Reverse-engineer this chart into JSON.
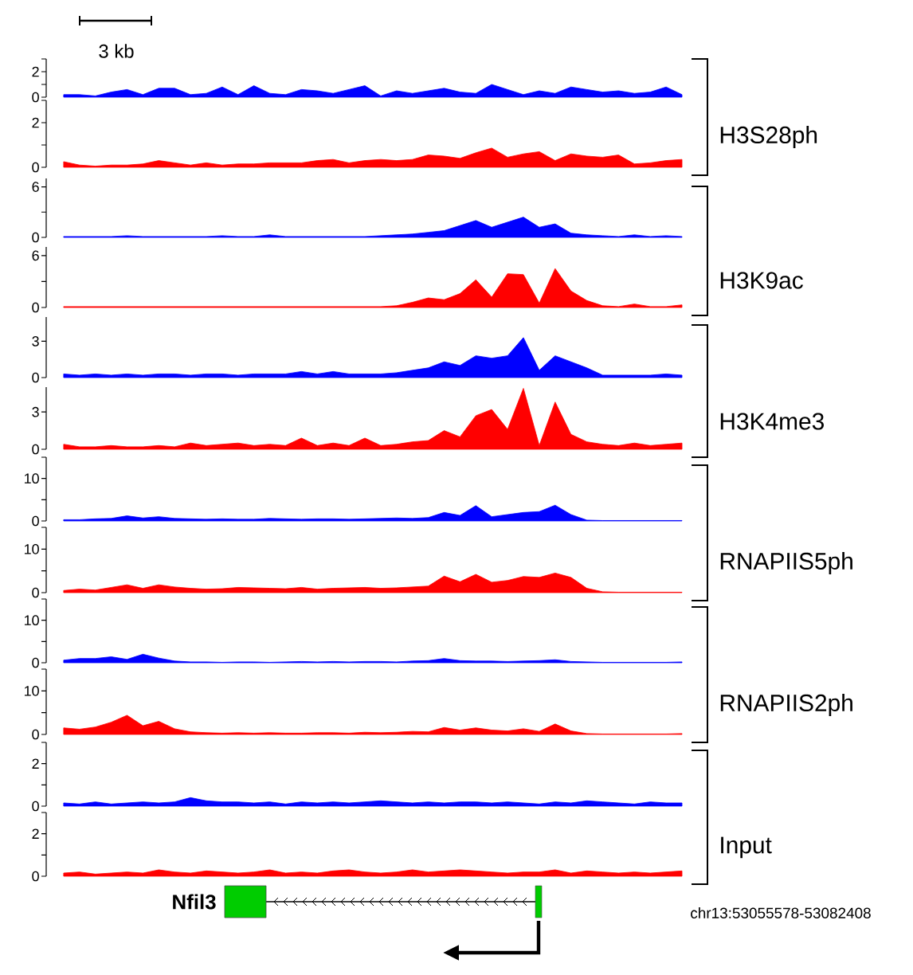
{
  "chart_data": [
    {
      "type": "area",
      "annotations": [
        "3 kb"
      ],
      "tick_labels": "y",
      "color": "#0000ff",
      "ylim": [
        0,
        3
      ],
      "yticks": [
        0,
        {
          "value": 1,
          "label": null
        },
        2,
        {
          "value": 3,
          "label": null
        }
      ],
      "categories": [
        null,
        null,
        null,
        null,
        null,
        null,
        null,
        null,
        null,
        null,
        null,
        null,
        null,
        null,
        null,
        null,
        null,
        null,
        null,
        null,
        null,
        null,
        null,
        null,
        null,
        null,
        null,
        null,
        null,
        null,
        null,
        null,
        null,
        null,
        null,
        null,
        null,
        null,
        null,
        null
      ],
      "values": [
        0.2,
        0.2,
        0.1,
        0.4,
        0.6,
        0.2,
        0.7,
        0.7,
        0.2,
        0.3,
        0.8,
        0.2,
        0.9,
        0.3,
        0.2,
        0.6,
        0.5,
        0.3,
        0.6,
        0.9,
        0.1,
        0.5,
        0.3,
        0.5,
        0.7,
        0.4,
        0.3,
        1.0,
        0.6,
        0.2,
        0.5,
        0.3,
        0.8,
        0.6,
        0.4,
        0.5,
        0.3,
        0.4,
        0.8,
        0.2
      ]
    },
    {
      "type": "area",
      "annotations": [
        "H3S28ph"
      ],
      "tick_labels": "y",
      "color": "#ff0000",
      "ylim": [
        0,
        3
      ],
      "yticks": [
        0,
        {
          "value": 1,
          "label": null
        },
        2,
        {
          "value": 3,
          "label": null
        }
      ],
      "categories": [
        null,
        null,
        null,
        null,
        null,
        null,
        null,
        null,
        null,
        null,
        null,
        null,
        null,
        null,
        null,
        null,
        null,
        null,
        null,
        null,
        null,
        null,
        null,
        null,
        null,
        null,
        null,
        null,
        null,
        null,
        null,
        null,
        null,
        null,
        null,
        null,
        null,
        null,
        null,
        null
      ],
      "values": [
        0.25,
        0.1,
        0.05,
        0.1,
        0.1,
        0.15,
        0.3,
        0.2,
        0.1,
        0.2,
        0.1,
        0.15,
        0.15,
        0.2,
        0.2,
        0.2,
        0.3,
        0.35,
        0.2,
        0.3,
        0.35,
        0.3,
        0.35,
        0.55,
        0.5,
        0.4,
        0.65,
        0.86,
        0.45,
        0.6,
        0.7,
        0.3,
        0.6,
        0.5,
        0.45,
        0.55,
        0.15,
        0.2,
        0.3,
        0.35
      ]
    },
    {
      "type": "area",
      "tick_labels": "y",
      "color": "#0000ff",
      "ylim": [
        0,
        7
      ],
      "yticks": [
        0,
        {
          "value": 3,
          "label": null
        },
        6
      ],
      "categories": [
        null,
        null,
        null,
        null,
        null,
        null,
        null,
        null,
        null,
        null,
        null,
        null,
        null,
        null,
        null,
        null,
        null,
        null,
        null,
        null,
        null,
        null,
        null,
        null,
        null,
        null,
        null,
        null,
        null,
        null,
        null,
        null,
        null,
        null,
        null,
        null,
        null,
        null,
        null,
        null
      ],
      "values": [
        0.1,
        0.1,
        0.1,
        0.1,
        0.2,
        0.1,
        0.1,
        0.1,
        0.1,
        0.1,
        0.2,
        0.1,
        0.1,
        0.3,
        0.1,
        0.1,
        0.1,
        0.1,
        0.1,
        0.1,
        0.2,
        0.3,
        0.4,
        0.6,
        0.8,
        1.4,
        2.0,
        1.2,
        1.8,
        2.4,
        1.2,
        1.6,
        0.5,
        0.3,
        0.2,
        0.1,
        0.3,
        0.1,
        0.2,
        0.1
      ]
    },
    {
      "type": "area",
      "annotations": [
        "H3K9ac"
      ],
      "tick_labels": "y",
      "color": "#ff0000",
      "ylim": [
        0,
        7
      ],
      "yticks": [
        0,
        {
          "value": 3,
          "label": null
        },
        6
      ],
      "categories": [
        null,
        null,
        null,
        null,
        null,
        null,
        null,
        null,
        null,
        null,
        null,
        null,
        null,
        null,
        null,
        null,
        null,
        null,
        null,
        null,
        null,
        null,
        null,
        null,
        null,
        null,
        null,
        null,
        null,
        null,
        null,
        null,
        null,
        null,
        null,
        null,
        null,
        null,
        null,
        null
      ],
      "values": [
        0.1,
        0.1,
        0.1,
        0.1,
        0.1,
        0.1,
        0.1,
        0.1,
        0.1,
        0.1,
        0.1,
        0.1,
        0.1,
        0.1,
        0.1,
        0.1,
        0.1,
        0.1,
        0.1,
        0.1,
        0.1,
        0.2,
        0.6,
        1.1,
        0.9,
        1.6,
        3.2,
        1.2,
        3.9,
        3.8,
        0.5,
        4.5,
        1.9,
        0.8,
        0.2,
        0.1,
        0.4,
        0.1,
        0.1,
        0.3
      ]
    },
    {
      "type": "area",
      "tick_labels": "y",
      "color": "#0000ff",
      "ylim": [
        0,
        5
      ],
      "yticks": [
        0,
        3
      ],
      "categories": [
        null,
        null,
        null,
        null,
        null,
        null,
        null,
        null,
        null,
        null,
        null,
        null,
        null,
        null,
        null,
        null,
        null,
        null,
        null,
        null,
        null,
        null,
        null,
        null,
        null,
        null,
        null,
        null,
        null,
        null,
        null,
        null,
        null,
        null,
        null,
        null,
        null,
        null,
        null,
        null
      ],
      "values": [
        0.3,
        0.2,
        0.3,
        0.2,
        0.3,
        0.2,
        0.3,
        0.3,
        0.2,
        0.3,
        0.3,
        0.2,
        0.3,
        0.3,
        0.3,
        0.5,
        0.3,
        0.5,
        0.3,
        0.3,
        0.3,
        0.4,
        0.6,
        0.8,
        1.3,
        1.0,
        1.8,
        1.6,
        1.8,
        3.3,
        0.6,
        1.8,
        1.3,
        0.8,
        0.2,
        0.2,
        0.2,
        0.2,
        0.3,
        0.2
      ]
    },
    {
      "type": "area",
      "annotations": [
        "H3K4me3"
      ],
      "tick_labels": "y",
      "color": "#ff0000",
      "ylim": [
        0,
        5
      ],
      "yticks": [
        0,
        3
      ],
      "categories": [
        null,
        null,
        null,
        null,
        null,
        null,
        null,
        null,
        null,
        null,
        null,
        null,
        null,
        null,
        null,
        null,
        null,
        null,
        null,
        null,
        null,
        null,
        null,
        null,
        null,
        null,
        null,
        null,
        null,
        null,
        null,
        null,
        null,
        null,
        null,
        null,
        null,
        null,
        null,
        null
      ],
      "values": [
        0.4,
        0.2,
        0.2,
        0.3,
        0.2,
        0.2,
        0.3,
        0.2,
        0.5,
        0.3,
        0.4,
        0.5,
        0.3,
        0.4,
        0.3,
        0.9,
        0.3,
        0.5,
        0.3,
        0.9,
        0.3,
        0.4,
        0.6,
        0.7,
        1.5,
        1.0,
        2.7,
        3.2,
        1.6,
        4.9,
        0.3,
        3.8,
        1.2,
        0.6,
        0.4,
        0.3,
        0.5,
        0.3,
        0.4,
        0.5
      ]
    },
    {
      "type": "area",
      "tick_labels": "y",
      "color": "#0000ff",
      "ylim": [
        0,
        15
      ],
      "yticks": [
        0,
        {
          "value": 5,
          "label": null
        },
        10,
        {
          "value": 15,
          "label": null
        }
      ],
      "categories": [
        null,
        null,
        null,
        null,
        null,
        null,
        null,
        null,
        null,
        null,
        null,
        null,
        null,
        null,
        null,
        null,
        null,
        null,
        null,
        null,
        null,
        null,
        null,
        null,
        null,
        null,
        null,
        null,
        null,
        null,
        null,
        null,
        null,
        null,
        null,
        null,
        null,
        null,
        null,
        null
      ],
      "values": [
        0.3,
        0.3,
        0.5,
        0.6,
        1.2,
        0.7,
        1.0,
        0.6,
        0.5,
        0.4,
        0.5,
        0.4,
        0.4,
        0.6,
        0.5,
        0.4,
        0.5,
        0.5,
        0.4,
        0.5,
        0.6,
        0.7,
        0.6,
        0.8,
        2.0,
        1.3,
        3.6,
        1.0,
        1.5,
        2.0,
        2.2,
        3.7,
        1.5,
        0.2,
        0.1,
        0.1,
        0.1,
        0.1,
        0.1,
        0.1
      ]
    },
    {
      "type": "area",
      "tick_labels": "y",
      "color": "#ff0000",
      "ylim": [
        0,
        15
      ],
      "yticks": [
        0,
        {
          "value": 5,
          "label": null
        },
        10,
        {
          "value": 15,
          "label": null
        }
      ],
      "categories": [
        null,
        null,
        null,
        null,
        null,
        null,
        null,
        null,
        null,
        null,
        null,
        null,
        null,
        null,
        null,
        null,
        null,
        null,
        null,
        null,
        null,
        null,
        null,
        null,
        null,
        null,
        null,
        null,
        null,
        null,
        null,
        null,
        null,
        null,
        null,
        null,
        null,
        null,
        null,
        null
      ],
      "annotations": [
        "RNAPIIS5ph"
      ],
      "values": [
        0.5,
        0.8,
        0.6,
        1.2,
        1.8,
        1.0,
        1.8,
        1.3,
        1.0,
        0.8,
        0.9,
        1.2,
        1.1,
        1.0,
        0.9,
        1.2,
        0.8,
        1.0,
        1.1,
        1.2,
        1.0,
        1.1,
        1.3,
        1.5,
        3.8,
        2.5,
        4.2,
        2.4,
        2.8,
        3.7,
        3.5,
        4.5,
        3.5,
        1.0,
        0.2,
        0.1,
        0.1,
        0.1,
        0.1,
        0.1
      ]
    },
    {
      "type": "area",
      "tick_labels": "y",
      "color": "#0000ff",
      "ylim": [
        0,
        15
      ],
      "yticks": [
        0,
        {
          "value": 5,
          "label": null
        },
        10,
        {
          "value": 15,
          "label": null
        }
      ],
      "categories": [
        null,
        null,
        null,
        null,
        null,
        null,
        null,
        null,
        null,
        null,
        null,
        null,
        null,
        null,
        null,
        null,
        null,
        null,
        null,
        null,
        null,
        null,
        null,
        null,
        null,
        null,
        null,
        null,
        null,
        null,
        null,
        null,
        null,
        null,
        null,
        null,
        null,
        null,
        null,
        null
      ],
      "values": [
        0.6,
        1.0,
        1.0,
        1.4,
        0.8,
        2.0,
        1.1,
        0.4,
        0.2,
        0.2,
        0.1,
        0.2,
        0.2,
        0.1,
        0.2,
        0.3,
        0.2,
        0.3,
        0.2,
        0.3,
        0.3,
        0.2,
        0.4,
        0.5,
        1.0,
        0.5,
        0.4,
        0.4,
        0.3,
        0.4,
        0.5,
        0.7,
        0.3,
        0.2,
        0.1,
        0.1,
        0.1,
        0.1,
        0.1,
        0.2
      ]
    },
    {
      "type": "area",
      "tick_labels": "y",
      "color": "#ff0000",
      "ylim": [
        0,
        15
      ],
      "yticks": [
        0,
        {
          "value": 5,
          "label": null
        },
        10,
        {
          "value": 15,
          "label": null
        }
      ],
      "categories": [
        null,
        null,
        null,
        null,
        null,
        null,
        null,
        null,
        null,
        null,
        null,
        null,
        null,
        null,
        null,
        null,
        null,
        null,
        null,
        null,
        null,
        null,
        null,
        null,
        null,
        null,
        null,
        null,
        null,
        null,
        null,
        null,
        null,
        null,
        null,
        null,
        null,
        null,
        null,
        null
      ],
      "annotations": [
        "RNAPIIS2ph"
      ],
      "values": [
        1.5,
        1.2,
        1.7,
        2.8,
        4.4,
        2.0,
        3.0,
        1.3,
        0.6,
        0.4,
        0.3,
        0.4,
        0.3,
        0.4,
        0.3,
        0.3,
        0.4,
        0.4,
        0.3,
        0.5,
        0.4,
        0.5,
        0.7,
        0.6,
        1.6,
        1.0,
        1.5,
        1.0,
        0.8,
        1.3,
        0.7,
        2.4,
        0.8,
        0.2,
        0.1,
        0.1,
        0.1,
        0.1,
        0.1,
        0.2
      ]
    },
    {
      "type": "area",
      "tick_labels": "y",
      "color": "#0000ff",
      "ylim": [
        0,
        3
      ],
      "yticks": [
        0,
        {
          "value": 1,
          "label": null
        },
        2,
        {
          "value": 3,
          "label": null
        }
      ],
      "categories": [
        null,
        null,
        null,
        null,
        null,
        null,
        null,
        null,
        null,
        null,
        null,
        null,
        null,
        null,
        null,
        null,
        null,
        null,
        null,
        null,
        null,
        null,
        null,
        null,
        null,
        null,
        null,
        null,
        null,
        null,
        null,
        null,
        null,
        null,
        null,
        null,
        null,
        null,
        null,
        null
      ],
      "values": [
        0.15,
        0.1,
        0.2,
        0.1,
        0.15,
        0.2,
        0.15,
        0.2,
        0.4,
        0.25,
        0.2,
        0.2,
        0.15,
        0.2,
        0.1,
        0.2,
        0.15,
        0.2,
        0.15,
        0.2,
        0.25,
        0.2,
        0.15,
        0.2,
        0.15,
        0.2,
        0.2,
        0.15,
        0.2,
        0.15,
        0.1,
        0.2,
        0.15,
        0.25,
        0.2,
        0.15,
        0.1,
        0.2,
        0.15,
        0.15
      ]
    },
    {
      "type": "area",
      "annotations": [
        "Input",
        "Nfil3",
        "chr13:53055578-53082408"
      ],
      "tick_labels": "y",
      "color": "#ff0000",
      "ylim": [
        0,
        3
      ],
      "yticks": [
        0,
        {
          "value": 1,
          "label": null
        },
        2,
        {
          "value": 3,
          "label": null
        }
      ],
      "categories": [
        null,
        null,
        null,
        null,
        null,
        null,
        null,
        null,
        null,
        null,
        null,
        null,
        null,
        null,
        null,
        null,
        null,
        null,
        null,
        null,
        null,
        null,
        null,
        null,
        null,
        null,
        null,
        null,
        null,
        null,
        null,
        null,
        null,
        null,
        null,
        null,
        null,
        null,
        null,
        null
      ],
      "values": [
        0.15,
        0.2,
        0.1,
        0.15,
        0.2,
        0.15,
        0.3,
        0.2,
        0.15,
        0.25,
        0.2,
        0.15,
        0.2,
        0.3,
        0.15,
        0.2,
        0.15,
        0.25,
        0.3,
        0.2,
        0.15,
        0.2,
        0.3,
        0.2,
        0.25,
        0.3,
        0.25,
        0.2,
        0.15,
        0.2,
        0.2,
        0.3,
        0.15,
        0.25,
        0.2,
        0.15,
        0.2,
        0.15,
        0.2,
        0.25
      ]
    }
  ]
}
